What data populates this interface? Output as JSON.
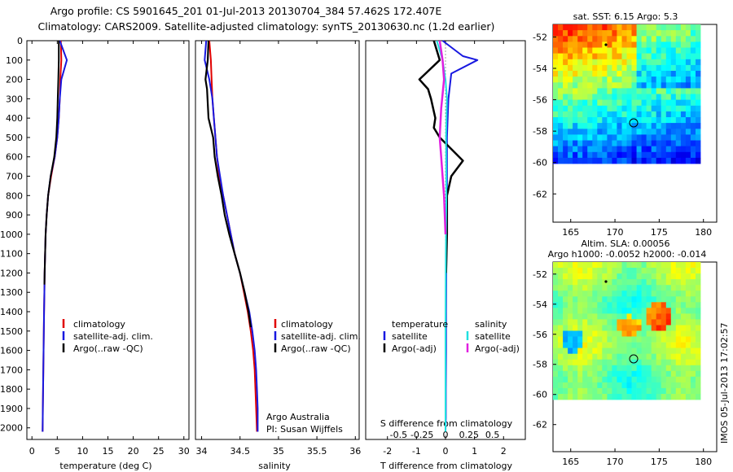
{
  "title_line1": "Argo profile: CS 5901645_201 01-Jul-2013 20130704_384 57.462S 172.407E",
  "title_line2": "Climatology: CARS2009. Satellite-adjusted climatology: synTS_20130630.nc (1.2d earlier)",
  "colors": {
    "climatology": "#e00000",
    "satellite": "#1818e0",
    "argo": "#000000",
    "cyan": "#20e0e0",
    "magenta": "#e020e0"
  },
  "depth_ticks": [
    0,
    100,
    200,
    300,
    400,
    500,
    600,
    700,
    800,
    900,
    1000,
    1100,
    1200,
    1300,
    1400,
    1500,
    1600,
    1700,
    1800,
    1900,
    2000
  ],
  "panel1": {
    "xlabel": "temperature (deg C)",
    "xticks": [
      "0",
      "5",
      "10",
      "15",
      "20",
      "25",
      "30"
    ],
    "legend": [
      "climatology",
      "satellite-adj. clim.",
      "Argo(..raw -QC)"
    ]
  },
  "panel2": {
    "xlabel": "salinity",
    "xticks": [
      "34",
      "34.5",
      "35",
      "35.5",
      "36"
    ],
    "legend": [
      "climatology",
      "satellite-adj. clim.",
      "Argo(..raw -QC)"
    ],
    "credit_line1": "Argo Australia",
    "credit_line2": "PI: Susan Wijffels"
  },
  "panel3": {
    "xlabel_t": "T difference from climatology",
    "xlabel_s": "S difference from climatology",
    "xticks_t": [
      "-2",
      "-1",
      "0",
      "1",
      "2"
    ],
    "xticks_s": [
      "-0.5",
      "-0.25",
      "0",
      "0.25",
      "0.5"
    ],
    "legend_temp_title": "temperature",
    "legend_sal_title": "salinity",
    "legend_temp": [
      "satellite",
      "Argo(-adj)"
    ],
    "legend_sal": [
      "satellite",
      "Argo(-adj)"
    ]
  },
  "map1": {
    "title": "sat. SST: 6.15 Argo: 5.3",
    "yticks": [
      "-52",
      "-54",
      "-56",
      "-58",
      "-60",
      "-62"
    ],
    "xticks": [
      "165",
      "170",
      "175",
      "180"
    ]
  },
  "map2": {
    "title_line1": "Altim. SLA: 0.00056",
    "title_line2": "Argo h1000: -0.0052 h2000: -0.014",
    "yticks": [
      "-52",
      "-54",
      "-56",
      "-58",
      "-60",
      "-62"
    ],
    "xticks": [
      "165",
      "170",
      "175",
      "180"
    ]
  },
  "stamp": "IMOS 05-Jul-2013 17:02:57",
  "chart_data": [
    {
      "type": "line",
      "ylabel": "",
      "xlabel": "temperature (deg C)",
      "xlim": [
        -1,
        31
      ],
      "ylim": [
        2060,
        0
      ],
      "series": [
        {
          "name": "climatology",
          "x": [
            5.7,
            5.8,
            5.6,
            5.5,
            5.3,
            5.0,
            4.5,
            3.8,
            3.2,
            2.9,
            2.7,
            2.6,
            2.5,
            2.45,
            2.4,
            2.35,
            2.3,
            2.25,
            2.2,
            2.15,
            2.1
          ],
          "y": [
            0,
            100,
            200,
            300,
            400,
            500,
            600,
            700,
            800,
            900,
            1000,
            1100,
            1200,
            1300,
            1400,
            1500,
            1600,
            1700,
            1800,
            1900,
            2020
          ]
        },
        {
          "name": "satellite-adj. clim.",
          "x": [
            5.5,
            6.9,
            5.8,
            5.5,
            5.3,
            5.0,
            4.5,
            3.7,
            3.2,
            2.9,
            2.7,
            2.6,
            2.5,
            2.45,
            2.4,
            2.35,
            2.3,
            2.25,
            2.2,
            2.15,
            2.1
          ],
          "y": [
            0,
            100,
            200,
            300,
            400,
            500,
            600,
            700,
            800,
            900,
            1000,
            1100,
            1200,
            1300,
            1400,
            1500,
            1600,
            1700,
            1800,
            1900,
            2020
          ]
        },
        {
          "name": "Argo(..raw -QC)",
          "x": [
            5.3,
            5.3,
            5.2,
            5.1,
            5.0,
            4.8,
            4.4,
            3.7,
            3.2,
            2.9,
            2.7,
            2.6,
            2.5,
            2.45
          ],
          "y": [
            0,
            100,
            200,
            300,
            400,
            500,
            600,
            700,
            800,
            900,
            1000,
            1100,
            1200,
            1260
          ]
        }
      ]
    },
    {
      "type": "line",
      "xlabel": "salinity",
      "xlim": [
        33.92,
        36.05
      ],
      "ylim": [
        2060,
        0
      ],
      "series": [
        {
          "name": "climatology",
          "x": [
            34.1,
            34.12,
            34.13,
            34.14,
            34.16,
            34.18,
            34.2,
            34.23,
            34.28,
            34.33,
            34.38,
            34.43,
            34.5,
            34.55,
            34.6,
            34.64,
            34.67,
            34.69,
            34.7,
            34.71,
            34.72
          ],
          "y": [
            0,
            100,
            200,
            300,
            400,
            500,
            600,
            700,
            800,
            900,
            1000,
            1100,
            1200,
            1300,
            1400,
            1500,
            1600,
            1700,
            1800,
            1900,
            2020
          ]
        },
        {
          "name": "satellite-adj. clim.",
          "x": [
            34.06,
            34.04,
            34.1,
            34.14,
            34.16,
            34.18,
            34.2,
            34.24,
            34.28,
            34.33,
            34.38,
            34.43,
            34.5,
            34.56,
            34.62,
            34.66,
            34.69,
            34.71,
            34.72,
            34.73,
            34.73
          ],
          "y": [
            0,
            100,
            200,
            300,
            400,
            500,
            600,
            700,
            800,
            900,
            1000,
            1100,
            1200,
            1300,
            1400,
            1500,
            1600,
            1700,
            1800,
            1900,
            2020
          ]
        },
        {
          "name": "Argo(..raw -QC)",
          "x": [
            34.09,
            34.08,
            34.05,
            34.07,
            34.09,
            34.15,
            34.17,
            34.21,
            34.26,
            34.3,
            34.36,
            34.43,
            34.5,
            34.56,
            34.61,
            34.64
          ],
          "y": [
            0,
            100,
            200,
            250,
            400,
            500,
            600,
            700,
            800,
            900,
            1000,
            1100,
            1200,
            1300,
            1400,
            1480
          ]
        }
      ]
    },
    {
      "type": "line",
      "xlabel": "T difference from climatology",
      "xlim": [
        -2.75,
        2.75
      ],
      "ylim": [
        2060,
        0
      ],
      "series": [
        {
          "name": "temperature satellite",
          "x": [
            -0.1,
            0.6,
            1.1,
            0.2,
            0.1,
            0.05,
            0.05,
            0.03,
            0.02,
            0.02,
            0.01,
            0.01,
            0.0
          ],
          "y": [
            0,
            80,
            100,
            170,
            300,
            500,
            800,
            1100,
            1400,
            1600,
            1800,
            1950,
            2020
          ]
        },
        {
          "name": "temperature Argo(-adj)",
          "x": [
            -0.4,
            -0.2,
            -0.9,
            -0.6,
            -0.5,
            -0.35,
            -0.4,
            -0.2,
            0.6,
            0.2,
            0.05,
            0.05,
            0.02
          ],
          "y": [
            0,
            100,
            200,
            250,
            300,
            400,
            450,
            500,
            620,
            700,
            800,
            1000,
            1200
          ]
        },
        {
          "name": "salinity satellite",
          "x": [
            -0.3,
            -0.1,
            0.0,
            0.05,
            0.02,
            0.03,
            0.01,
            0.0,
            0.0
          ],
          "y": [
            0,
            100,
            200,
            300,
            500,
            800,
            1100,
            1500,
            2020
          ]
        },
        {
          "name": "salinity Argo(-adj)",
          "x": [
            -0.2,
            -0.1,
            -0.05,
            -0.15,
            -0.2,
            -0.15,
            -0.1,
            -0.05,
            0.0
          ],
          "y": [
            0,
            100,
            200,
            350,
            500,
            600,
            700,
            800,
            1000
          ]
        }
      ]
    }
  ]
}
